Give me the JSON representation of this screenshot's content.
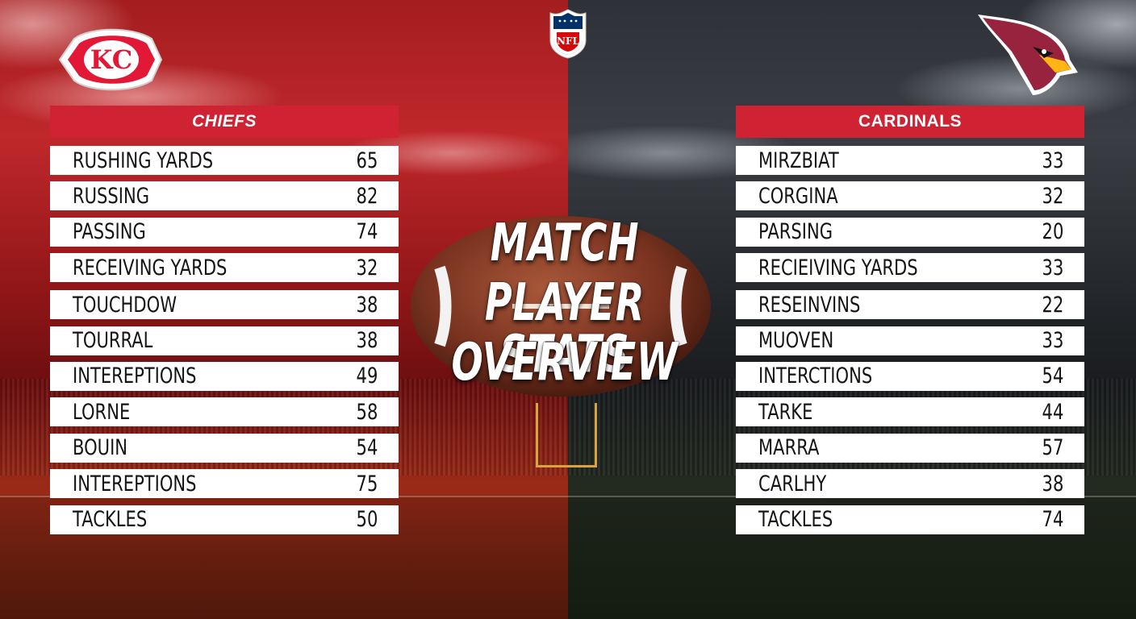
{
  "title": {
    "lines": [
      "MATCH",
      "PLAYER STATS",
      "OVERVIEW"
    ]
  },
  "logos": {
    "left": "kc-logo",
    "center": "nfl-logo",
    "center_text": "NFL",
    "right": "cardinals-logo",
    "kc_text": "KC"
  },
  "colors": {
    "chiefs_red": "#cf2233",
    "cardinals_red": "#cf2233",
    "row_bg": "#ffffff"
  },
  "chiefs": {
    "header": "CHIEFS",
    "rows": [
      {
        "label": "RUSHING YARDS",
        "value": "65"
      },
      {
        "label": "RUSSING",
        "value": "82"
      },
      {
        "label": "PASSING",
        "value": "74"
      },
      {
        "label": "RECEIVING YARDS",
        "value": "32"
      },
      {
        "label": "TOUCHDOW",
        "value": "38"
      },
      {
        "label": "TOURRAL",
        "value": "38"
      },
      {
        "label": "INTEREPTIONS",
        "value": "49"
      },
      {
        "label": "LORNE",
        "value": "58"
      },
      {
        "label": "BOUIN",
        "value": "54"
      },
      {
        "label": "INTEREPTIONS",
        "value": "75"
      },
      {
        "label": "TACKLES",
        "value": "50"
      }
    ]
  },
  "cardinals": {
    "header": "CARDINALS",
    "rows": [
      {
        "label": "MIRZBIAT",
        "value": "33"
      },
      {
        "label": "CORGINA",
        "value": "32"
      },
      {
        "label": "PARSING",
        "value": "20"
      },
      {
        "label": "RECIEIVING YARDS",
        "value": "33"
      },
      {
        "label": "RESEINVINS",
        "value": "22"
      },
      {
        "label": "MUOVEN",
        "value": "33"
      },
      {
        "label": "INTERCTIONS",
        "value": "54"
      },
      {
        "label": "TARKE",
        "value": "44"
      },
      {
        "label": "MARRA",
        "value": "57"
      },
      {
        "label": "CARLHY",
        "value": "38"
      },
      {
        "label": "TACKLES",
        "value": "74"
      }
    ]
  }
}
